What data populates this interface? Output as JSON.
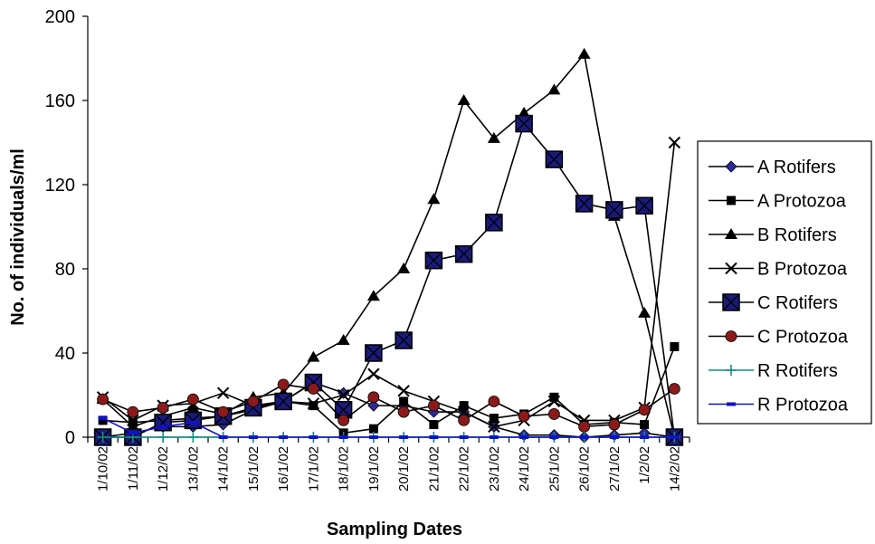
{
  "chart_data": {
    "type": "line",
    "xlabel": "Sampling Dates",
    "ylabel": "No. of individuals/ml",
    "ylim": [
      0,
      200
    ],
    "yticks": [
      "0",
      "40",
      "80",
      "120",
      "160",
      "200"
    ],
    "grid": false,
    "legend_position": "right",
    "categories": [
      "1/10/02",
      "1/11/02",
      "1/12/02",
      "13/1/02",
      "14/1/02",
      "15/1/02",
      "16/1/02",
      "17/1/02",
      "18/1/02",
      "19/1/02",
      "20/1/02",
      "21/1/02",
      "22/1/02",
      "23/1/02",
      "24/1/02",
      "25/1/02",
      "26/1/02",
      "27/1/02",
      "1/2/02",
      "14/2/02"
    ],
    "series": [
      {
        "name": "A Rotifers",
        "marker": "diamond",
        "color": "#2a2a9a",
        "values": [
          0,
          2,
          5,
          5,
          6,
          13,
          17,
          26,
          21,
          15,
          15,
          12,
          12,
          5,
          1,
          1,
          0,
          1,
          2,
          0
        ]
      },
      {
        "name": "A Protozoa",
        "marker": "square",
        "color": "#000000",
        "values": [
          8,
          7,
          8,
          9,
          10,
          13,
          17,
          15,
          2,
          4,
          17,
          6,
          15,
          9,
          11,
          19,
          6,
          7,
          6,
          43
        ]
      },
      {
        "name": "B Rotifers",
        "marker": "triangle",
        "color": "#000000",
        "values": [
          18,
          5,
          10,
          14,
          11,
          19,
          21,
          38,
          46,
          67,
          80,
          113,
          160,
          142,
          154,
          165,
          182,
          105,
          59,
          0
        ]
      },
      {
        "name": "B Protozoa",
        "marker": "x",
        "color": "#000000",
        "values": [
          19,
          8,
          15,
          16,
          21,
          15,
          17,
          16,
          20,
          30,
          22,
          17,
          12,
          5,
          8,
          17,
          8,
          8,
          14,
          140
        ]
      },
      {
        "name": "C Rotifers",
        "marker": "bigsquare",
        "color": "#1a1a7a",
        "values": [
          0,
          0,
          7,
          8,
          10,
          14,
          17,
          26,
          13,
          40,
          46,
          84,
          87,
          102,
          149,
          132,
          111,
          108,
          110,
          0
        ]
      },
      {
        "name": "C Protozoa",
        "marker": "circle",
        "color": "#8b1a1a",
        "values": [
          18,
          12,
          14,
          18,
          12,
          17,
          25,
          23,
          8,
          19,
          12,
          15,
          8,
          17,
          10,
          11,
          5,
          6,
          13,
          23
        ]
      },
      {
        "name": "R Rotifers",
        "marker": "plus",
        "color": "#0f8f80",
        "values": [
          0,
          0,
          0,
          0,
          0,
          0,
          0,
          0,
          0,
          0,
          0,
          0,
          0,
          0,
          0,
          0,
          0,
          0,
          0,
          0
        ]
      },
      {
        "name": "R Protozoa",
        "marker": "dash",
        "color": "#1010d0",
        "values": [
          9,
          2,
          5,
          7,
          0,
          0,
          0,
          0,
          0,
          0,
          0,
          0,
          0,
          0,
          0,
          0,
          0,
          0,
          0,
          0
        ]
      }
    ]
  }
}
